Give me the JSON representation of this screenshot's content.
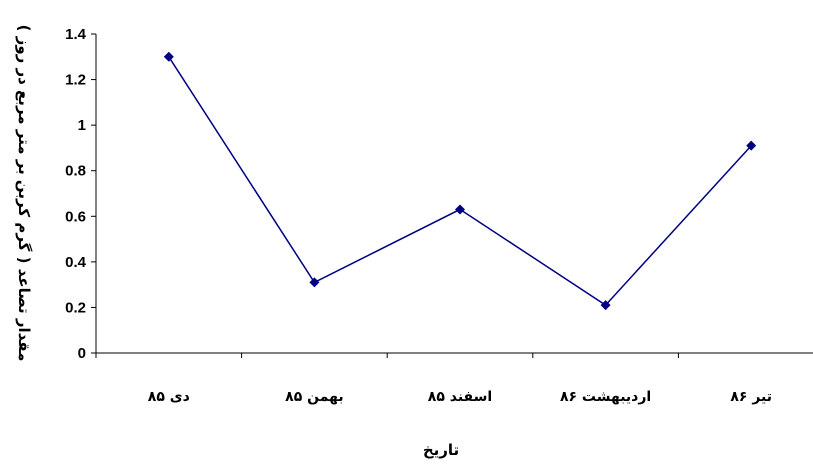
{
  "chart_data": {
    "type": "line",
    "categories": [
      "دی ۸۵",
      "بهمن ۸۵",
      "اسفند ۸۵",
      "اردیبهشت ۸۶",
      "تیر ۸۶"
    ],
    "series": [
      {
        "values": [
          1.3,
          0.31,
          0.63,
          0.21,
          0.91
        ],
        "color": "#000080",
        "marker": "diamond"
      }
    ],
    "xlabel": "تاریخ",
    "ylabel": "مقدار تصاعد ( گرم کربن بر متر مربع در روز )",
    "ylim": [
      0,
      1.4
    ],
    "yticks": [
      0,
      0.2,
      0.4,
      0.6,
      0.8,
      1,
      1.2,
      1.4
    ],
    "grid": false,
    "legend": "none"
  }
}
